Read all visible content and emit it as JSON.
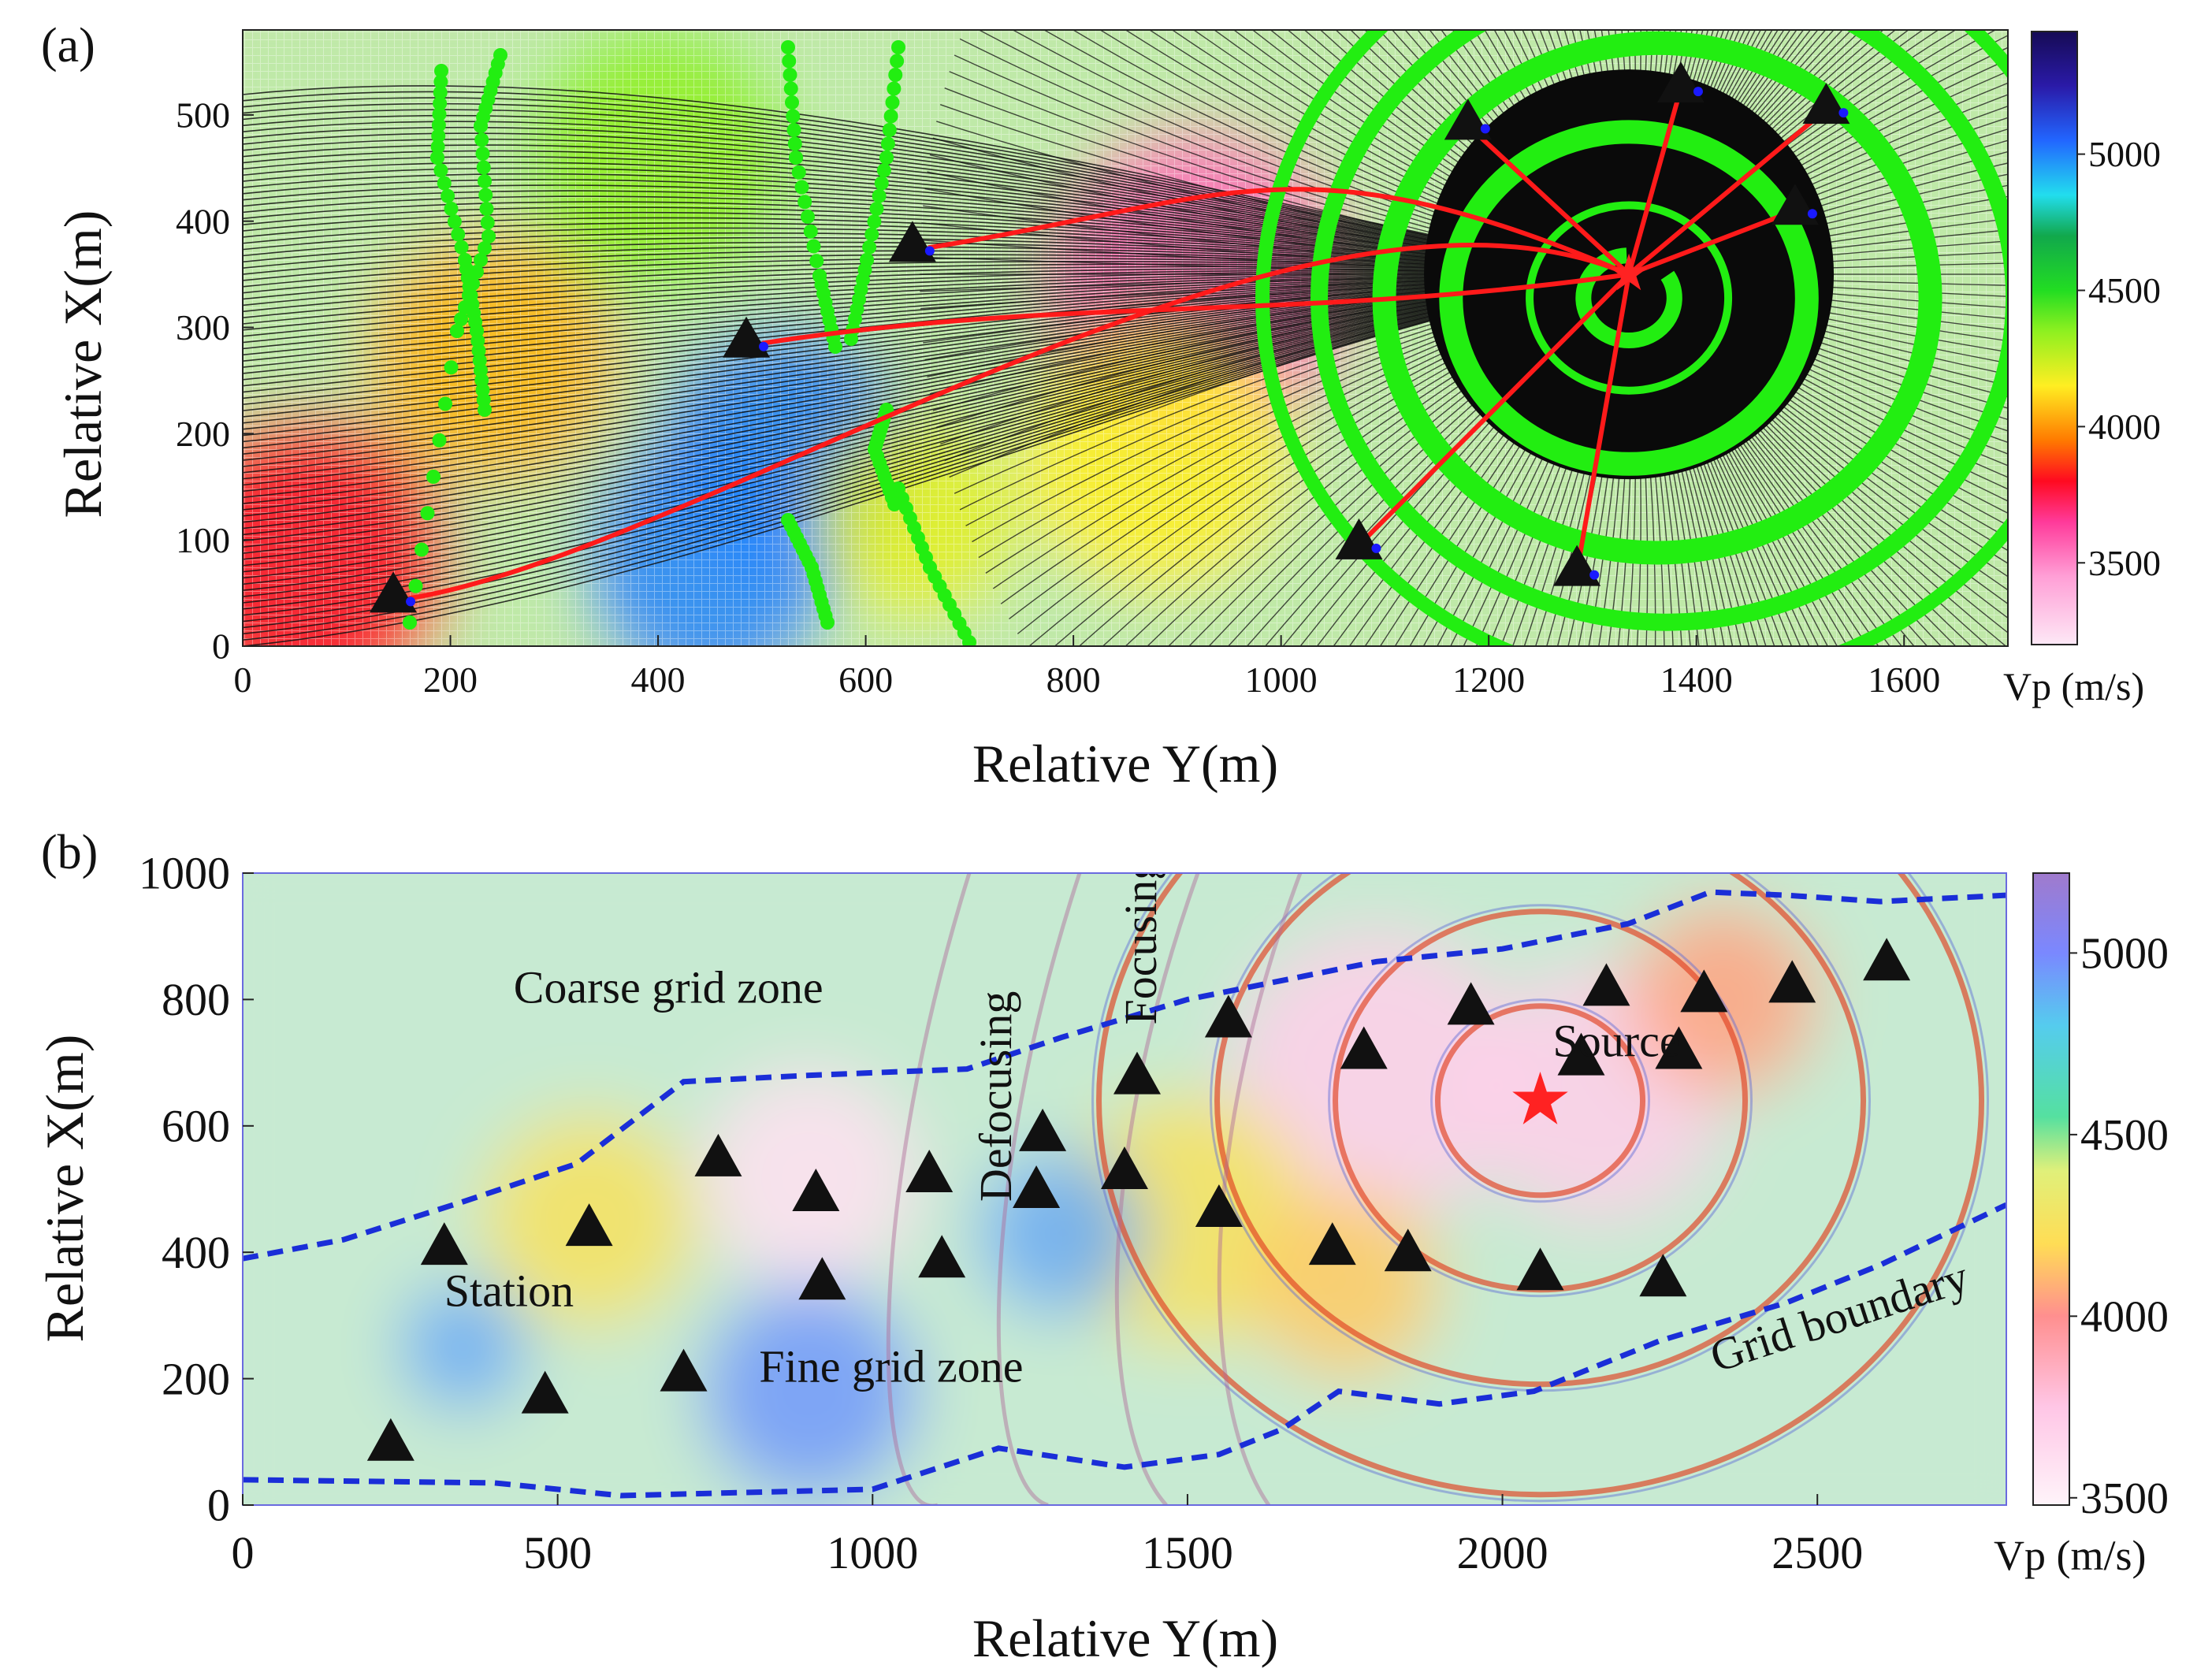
{
  "colors": {
    "ray": "#111111",
    "mainRay": "#ff1a1a",
    "wavefront": "#22ee11",
    "station": "#111111",
    "stationTip": "#1a1aff",
    "source": "#ff2222",
    "boundary": "#1a2ed8",
    "ring": "#e04020"
  },
  "chart_data": [
    {
      "type": "heatmap",
      "panel_label": "(a)",
      "xlabel": "Relative Y(m)",
      "ylabel": "Relative X(m)",
      "xlim": [
        0,
        1700
      ],
      "ylim": [
        0,
        580
      ],
      "xticks": [
        "0",
        "200",
        "400",
        "600",
        "800",
        "1000",
        "1200",
        "1400",
        "1600"
      ],
      "yticks": [
        "0",
        "100",
        "200",
        "300",
        "400",
        "500"
      ],
      "colorbar": {
        "label": "Vp (m/s)",
        "range": [
          3200,
          5450
        ],
        "ticks": [
          "3500",
          "4000",
          "4500",
          "5000"
        ],
        "stops": [
          {
            "v": 3200,
            "c": "#fde8f6"
          },
          {
            "v": 3450,
            "c": "#ff9fd6"
          },
          {
            "v": 3650,
            "c": "#ff3a9a"
          },
          {
            "v": 3800,
            "c": "#ff0a20"
          },
          {
            "v": 3950,
            "c": "#ff7a00"
          },
          {
            "v": 4150,
            "c": "#ffee22"
          },
          {
            "v": 4350,
            "c": "#8ef020"
          },
          {
            "v": 4500,
            "c": "#22dd22"
          },
          {
            "v": 4700,
            "c": "#11a84c"
          },
          {
            "v": 4850,
            "c": "#22ddee"
          },
          {
            "v": 5050,
            "c": "#2266ff"
          },
          {
            "v": 5250,
            "c": "#2a1aa8"
          },
          {
            "v": 5450,
            "c": "#160b55"
          }
        ]
      },
      "source": {
        "y": 1335,
        "x": 350
      },
      "stations": [
        {
          "y": 145,
          "x": 45
        },
        {
          "y": 485,
          "x": 285
        },
        {
          "y": 645,
          "x": 375
        },
        {
          "y": 1075,
          "x": 95
        },
        {
          "y": 1180,
          "x": 490
        },
        {
          "y": 1285,
          "x": 70
        },
        {
          "y": 1385,
          "x": 525
        },
        {
          "y": 1495,
          "x": 410
        },
        {
          "y": 1525,
          "x": 505
        }
      ],
      "velocity_features": [
        {
          "y": 60,
          "x": 80,
          "vp": 3800,
          "r": 140
        },
        {
          "y": 240,
          "x": 270,
          "vp": 4050,
          "r": 120
        },
        {
          "y": 520,
          "x": 180,
          "vp": 5000,
          "r": 120
        },
        {
          "y": 450,
          "x": 80,
          "vp": 5000,
          "r": 120
        },
        {
          "y": 650,
          "x": 120,
          "vp": 4200,
          "r": 100
        },
        {
          "y": 920,
          "x": 340,
          "vp": 3550,
          "r": 150
        },
        {
          "y": 880,
          "x": 180,
          "vp": 4150,
          "r": 130
        },
        {
          "y": 400,
          "x": 460,
          "vp": 4350,
          "r": 130
        }
      ]
    },
    {
      "type": "heatmap",
      "panel_label": "(b)",
      "xlabel": "Relative Y(m)",
      "ylabel": "Relative X(m)",
      "xlim": [
        0,
        2800
      ],
      "ylim": [
        0,
        1000
      ],
      "xticks": [
        "0",
        "500",
        "1000",
        "1500",
        "2000",
        "2500"
      ],
      "yticks": [
        "0",
        "200",
        "400",
        "600",
        "800",
        "1000"
      ],
      "colorbar": {
        "label": "Vp (m/s)",
        "range": [
          3480,
          5220
        ],
        "ticks": [
          "3500",
          "4000",
          "4500",
          "5000"
        ],
        "stops": [
          {
            "v": 3480,
            "c": "#fff4fa"
          },
          {
            "v": 3750,
            "c": "#ffc6e6"
          },
          {
            "v": 4000,
            "c": "#ff8f8f"
          },
          {
            "v": 4200,
            "c": "#ffdd55"
          },
          {
            "v": 4400,
            "c": "#e0f07a"
          },
          {
            "v": 4550,
            "c": "#55e0a0"
          },
          {
            "v": 4800,
            "c": "#55ccee"
          },
          {
            "v": 5000,
            "c": "#7a88ff"
          },
          {
            "v": 5220,
            "c": "#a07acc"
          }
        ]
      },
      "annotations": [
        {
          "text": "Coarse grid zone",
          "y": 430,
          "x": 795,
          "rotate": 0
        },
        {
          "text": "Station",
          "y": 320,
          "x": 315,
          "rotate": 0
        },
        {
          "text": "Fine grid zone",
          "y": 820,
          "x": 195,
          "rotate": 0
        },
        {
          "text": "Defocusing",
          "y": 1220,
          "x": 480,
          "rotate": -90
        },
        {
          "text": "Focusing",
          "y": 1450,
          "x": 760,
          "rotate": -90
        },
        {
          "text": "Source",
          "y": 2080,
          "x": 710,
          "rotate": 0
        },
        {
          "text": "Grid boundary",
          "y": 2340,
          "x": 210,
          "rotate": -18
        }
      ],
      "source": {
        "y": 2060,
        "x": 640
      },
      "stations": [
        {
          "y": 235,
          "x": 100
        },
        {
          "y": 320,
          "x": 410
        },
        {
          "y": 480,
          "x": 175
        },
        {
          "y": 550,
          "x": 440
        },
        {
          "y": 700,
          "x": 210
        },
        {
          "y": 755,
          "x": 550
        },
        {
          "y": 910,
          "x": 495
        },
        {
          "y": 920,
          "x": 355
        },
        {
          "y": 1090,
          "x": 525
        },
        {
          "y": 1110,
          "x": 390
        },
        {
          "y": 1260,
          "x": 500
        },
        {
          "y": 1270,
          "x": 590
        },
        {
          "y": 1400,
          "x": 530
        },
        {
          "y": 1420,
          "x": 680
        },
        {
          "y": 1550,
          "x": 470
        },
        {
          "y": 1565,
          "x": 770
        },
        {
          "y": 1730,
          "x": 410
        },
        {
          "y": 1780,
          "x": 720
        },
        {
          "y": 1850,
          "x": 400
        },
        {
          "y": 1950,
          "x": 790
        },
        {
          "y": 2060,
          "x": 370
        },
        {
          "y": 2125,
          "x": 710
        },
        {
          "y": 2165,
          "x": 820
        },
        {
          "y": 2255,
          "x": 360
        },
        {
          "y": 2280,
          "x": 720
        },
        {
          "y": 2320,
          "x": 810
        },
        {
          "y": 2460,
          "x": 825
        },
        {
          "y": 2610,
          "x": 860
        }
      ],
      "grid_boundary_upper": [
        [
          0,
          390
        ],
        [
          160,
          420
        ],
        [
          350,
          480
        ],
        [
          530,
          540
        ],
        [
          700,
          670
        ],
        [
          900,
          680
        ],
        [
          1150,
          690
        ],
        [
          1300,
          740
        ],
        [
          1500,
          800
        ],
        [
          1800,
          860
        ],
        [
          2000,
          880
        ],
        [
          2200,
          920
        ],
        [
          2330,
          970
        ],
        [
          2450,
          965
        ],
        [
          2600,
          955
        ],
        [
          2800,
          965
        ]
      ],
      "grid_boundary_lower": [
        [
          0,
          40
        ],
        [
          400,
          35
        ],
        [
          600,
          15
        ],
        [
          1000,
          25
        ],
        [
          1200,
          90
        ],
        [
          1400,
          60
        ],
        [
          1550,
          80
        ],
        [
          1650,
          120
        ],
        [
          1740,
          180
        ],
        [
          1900,
          160
        ],
        [
          2050,
          180
        ],
        [
          2250,
          260
        ],
        [
          2450,
          320
        ],
        [
          2600,
          380
        ],
        [
          2800,
          475
        ]
      ],
      "velocity_features": [
        {
          "y": 900,
          "x": 520,
          "vp": 3600,
          "r": 170
        },
        {
          "y": 1800,
          "x": 680,
          "vp": 3700,
          "r": 230
        },
        {
          "y": 2150,
          "x": 650,
          "vp": 3700,
          "r": 200
        },
        {
          "y": 550,
          "x": 450,
          "vp": 4250,
          "r": 170
        },
        {
          "y": 1500,
          "x": 450,
          "vp": 4250,
          "r": 200
        },
        {
          "y": 900,
          "x": 180,
          "vp": 4950,
          "r": 170
        },
        {
          "y": 1300,
          "x": 430,
          "vp": 4900,
          "r": 130
        },
        {
          "y": 350,
          "x": 250,
          "vp": 4900,
          "r": 100
        },
        {
          "y": 1750,
          "x": 350,
          "vp": 4150,
          "r": 150
        },
        {
          "y": 2350,
          "x": 800,
          "vp": 4050,
          "r": 150
        }
      ]
    }
  ]
}
